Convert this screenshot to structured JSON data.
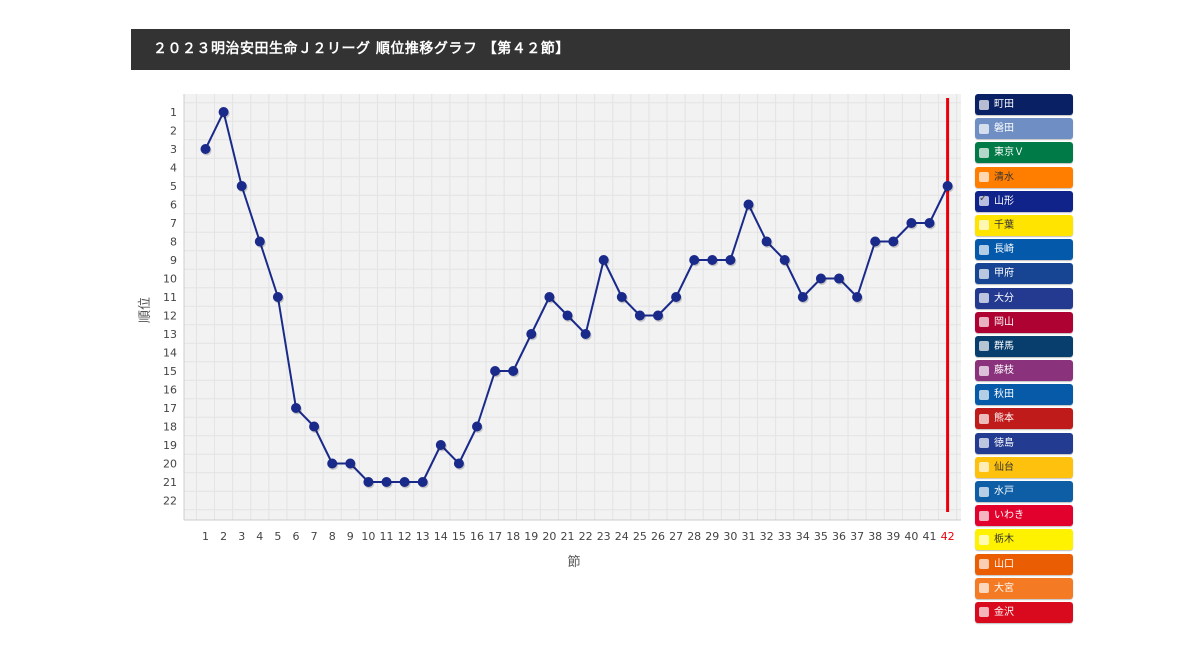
{
  "page": {
    "title": "２０２３明治安田生命Ｊ２リーグ 順位推移グラフ 【第４２節】"
  },
  "chart_data": {
    "type": "line",
    "xlabel": "節",
    "ylabel": "順位",
    "x": [
      1,
      2,
      3,
      4,
      5,
      6,
      7,
      8,
      9,
      10,
      11,
      12,
      13,
      14,
      15,
      16,
      17,
      18,
      19,
      20,
      21,
      22,
      23,
      24,
      25,
      26,
      27,
      28,
      29,
      30,
      31,
      32,
      33,
      34,
      35,
      36,
      37,
      38,
      39,
      40,
      41,
      42
    ],
    "y_ticks": [
      1,
      2,
      3,
      4,
      5,
      6,
      7,
      8,
      9,
      10,
      11,
      12,
      13,
      14,
      15,
      16,
      17,
      18,
      19,
      20,
      21,
      22
    ],
    "ylim": [
      1,
      22
    ],
    "y_inverted": true,
    "grid": true,
    "highlight_x": 42,
    "highlight_color": "#e8000b",
    "series": [
      {
        "name": "山形",
        "color": "#1a2a8a",
        "values": [
          3,
          1,
          5,
          8,
          11,
          17,
          18,
          20,
          20,
          21,
          21,
          21,
          21,
          19,
          20,
          18,
          15,
          15,
          13,
          11,
          12,
          13,
          9,
          11,
          12,
          12,
          11,
          9,
          9,
          9,
          6,
          8,
          9,
          11,
          10,
          10,
          11,
          8,
          8,
          7,
          7,
          5
        ]
      }
    ]
  },
  "legend": [
    {
      "label": "町田",
      "color": "#0a2065",
      "text_color": "#ffffff",
      "checked": false
    },
    {
      "label": "磐田",
      "color": "#6f8fc4",
      "text_color": "#ffffff",
      "checked": false
    },
    {
      "label": "東京Ｖ",
      "color": "#007b48",
      "text_color": "#ffffff",
      "checked": false
    },
    {
      "label": "清水",
      "color": "#ff7e00",
      "text_color": "#333333",
      "checked": false
    },
    {
      "label": "山形",
      "color": "#10238b",
      "text_color": "#ffffff",
      "checked": true
    },
    {
      "label": "千葉",
      "color": "#ffe400",
      "text_color": "#333333",
      "checked": false
    },
    {
      "label": "長崎",
      "color": "#0559aa",
      "text_color": "#ffffff",
      "checked": false
    },
    {
      "label": "甲府",
      "color": "#174593",
      "text_color": "#ffffff",
      "checked": false
    },
    {
      "label": "大分",
      "color": "#243a91",
      "text_color": "#ffffff",
      "checked": false
    },
    {
      "label": "岡山",
      "color": "#ae0332",
      "text_color": "#ffffff",
      "checked": false
    },
    {
      "label": "群馬",
      "color": "#073e6e",
      "text_color": "#ffffff",
      "checked": false
    },
    {
      "label": "藤枝",
      "color": "#8a327c",
      "text_color": "#ffffff",
      "checked": false
    },
    {
      "label": "秋田",
      "color": "#065aa8",
      "text_color": "#ffffff",
      "checked": false
    },
    {
      "label": "熊本",
      "color": "#bf1b1b",
      "text_color": "#ffffff",
      "checked": false
    },
    {
      "label": "徳島",
      "color": "#233c92",
      "text_color": "#ffffff",
      "checked": false
    },
    {
      "label": "仙台",
      "color": "#fec20e",
      "text_color": "#333333",
      "checked": false
    },
    {
      "label": "水戸",
      "color": "#0e5ea5",
      "text_color": "#ffffff",
      "checked": false
    },
    {
      "label": "いわき",
      "color": "#e2002d",
      "text_color": "#ffffff",
      "checked": false
    },
    {
      "label": "栃木",
      "color": "#fff200",
      "text_color": "#333333",
      "checked": false
    },
    {
      "label": "山口",
      "color": "#eb5d03",
      "text_color": "#ffffff",
      "checked": false
    },
    {
      "label": "大宮",
      "color": "#f47a23",
      "text_color": "#ffffff",
      "checked": false
    },
    {
      "label": "金沢",
      "color": "#d90a1d",
      "text_color": "#ffffff",
      "checked": false
    }
  ]
}
